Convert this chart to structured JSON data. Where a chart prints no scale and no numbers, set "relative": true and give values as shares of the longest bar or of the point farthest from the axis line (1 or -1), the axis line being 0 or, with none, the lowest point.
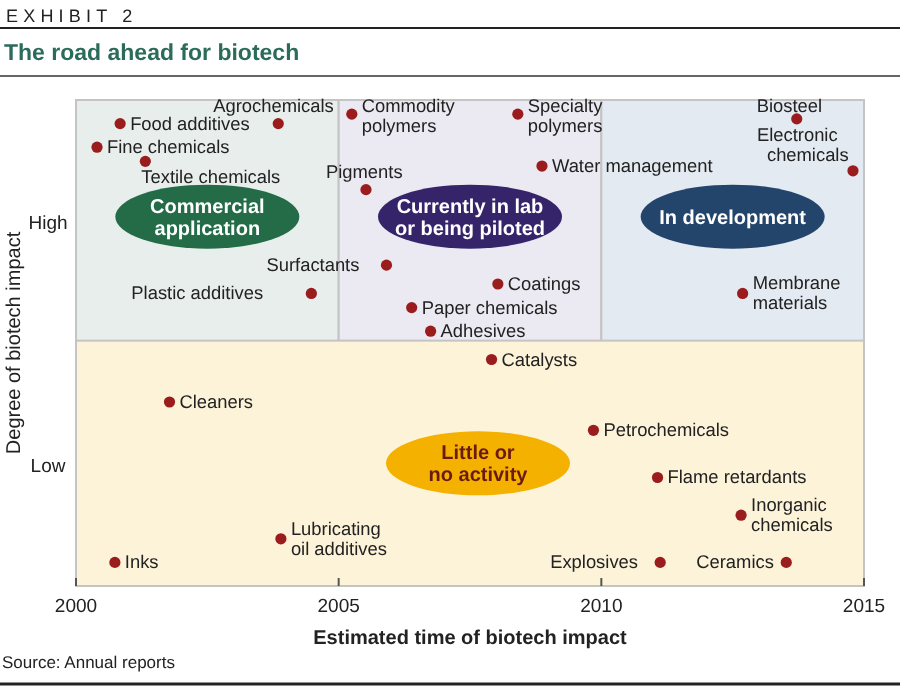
{
  "chart_data": {
    "type": "scatter",
    "subtitle": "EXHIBIT 2",
    "title": "The road ahead for biotech",
    "xlabel": "Estimated time of biotech impact",
    "ylabel": "Degree of biotech impact",
    "xlim": [
      2000,
      2015
    ],
    "xticks": [
      2000,
      2005,
      2010,
      2015
    ],
    "relative": true,
    "marker": "circle",
    "x": [
      2000.84,
      2000.4,
      2001.32,
      2003.85,
      2005.25,
      2005.52,
      2004.48,
      2005.91,
      2006.39,
      2006.75,
      2008.41,
      2008.87,
      2008.03,
      2013.72,
      2014.79,
      2012.69,
      2001.78,
      2003.9,
      2000.74,
      2007.91,
      2009.85,
      2011.07,
      2012.66,
      2011.12,
      2013.52
    ],
    "series": [
      {
        "color": "#9b1c1c",
        "values": [
          0.98,
          0.93,
          0.9,
          0.98,
          1,
          0.84,
          0.62,
          0.68,
          0.59,
          0.54,
          1,
          0.89,
          0.64,
          0.99,
          0.88,
          0.62,
          0.39,
          0.1,
          0.05,
          0.48,
          0.33,
          0.23,
          0.15,
          0.05,
          0.05
        ]
      }
    ],
    "bands": [
      {
        "axis": "x",
        "from": 2000,
        "to": 2005,
        "label": "Commercial application",
        "color": "#e8eeeb"
      },
      {
        "axis": "x",
        "from": 2005,
        "to": 2010,
        "label": "Currently in lab or being piloted",
        "color": "#ebe9f1"
      },
      {
        "axis": "x",
        "from": 2010,
        "to": 2015,
        "label": "In development",
        "color": "#e4eaf1"
      },
      {
        "axis": "y",
        "from": 0,
        "to": 0.52,
        "label": "Little or no activity",
        "color": "#fdf3d9"
      }
    ],
    "annotations": [
      "High",
      "Low",
      {
        "text": "Food additives",
        "x": 2000.84,
        "y": 0.98
      },
      {
        "text": "Fine chemicals",
        "x": 2000.4,
        "y": 0.93
      },
      {
        "text": "Textile chemicals",
        "x": 2001.32,
        "y": 0.9
      },
      {
        "text": "Agrochemicals",
        "x": 2003.85,
        "y": 0.98
      },
      {
        "text": "Commodity polymers",
        "x": 2005.25,
        "y": 1
      },
      {
        "text": "Pigments",
        "x": 2005.52,
        "y": 0.84
      },
      {
        "text": "Plastic additives",
        "x": 2004.48,
        "y": 0.62
      },
      {
        "text": "Surfactants",
        "x": 2005.91,
        "y": 0.68
      },
      {
        "text": "Paper chemicals",
        "x": 2006.39,
        "y": 0.59
      },
      {
        "text": "Adhesives",
        "x": 2006.75,
        "y": 0.54
      },
      {
        "text": "Specialty polymers",
        "x": 2008.41,
        "y": 1
      },
      {
        "text": "Water management",
        "x": 2008.87,
        "y": 0.89
      },
      {
        "text": "Coatings",
        "x": 2008.03,
        "y": 0.64
      },
      {
        "text": "Biosteel",
        "x": 2013.72,
        "y": 0.99
      },
      {
        "text": "Electronic chemicals",
        "x": 2014.79,
        "y": 0.88
      },
      {
        "text": "Membrane materials",
        "x": 2012.69,
        "y": 0.62
      },
      {
        "text": "Cleaners",
        "x": 2001.78,
        "y": 0.39
      },
      {
        "text": "Lubricating oil additives",
        "x": 2003.9,
        "y": 0.1
      },
      {
        "text": "Inks",
        "x": 2000.74,
        "y": 0.05
      },
      {
        "text": "Catalysts",
        "x": 2007.91,
        "y": 0.48
      },
      {
        "text": "Petrochemicals",
        "x": 2009.85,
        "y": 0.33
      },
      {
        "text": "Flame retardants",
        "x": 2011.07,
        "y": 0.23
      },
      {
        "text": "Inorganic chemicals",
        "x": 2012.66,
        "y": 0.15
      },
      {
        "text": "Explosives",
        "x": 2011.12,
        "y": 0.05
      },
      {
        "text": "Ceramics",
        "x": 2013.52,
        "y": 0.05
      },
      "Source: Annual reports"
    ]
  }
}
